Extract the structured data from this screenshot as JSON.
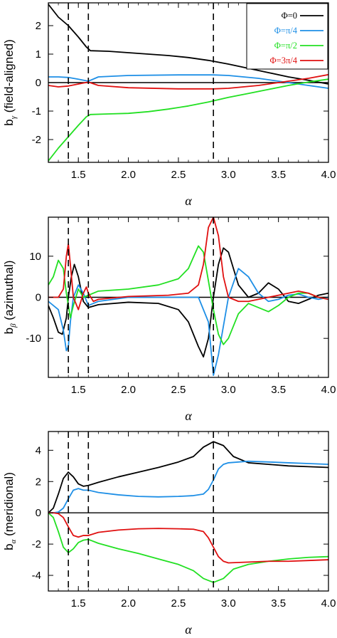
{
  "colors": {
    "phi0": "#000000",
    "phi1": "#1e8fe6",
    "phi2": "#22e022",
    "phi3": "#e01010",
    "axes": "#000000"
  },
  "legend": [
    {
      "label": "Φ=0",
      "color": "#000000"
    },
    {
      "label": "Φ=π/4",
      "color": "#1e8fe6"
    },
    {
      "label": "Φ=π/2",
      "color": "#22e022"
    },
    {
      "label": "Φ=3π/4",
      "color": "#e01010"
    }
  ],
  "chart_data": [
    {
      "type": "line",
      "ylabel_main": "b",
      "ylabel_sub": "γ",
      "ylabel_rest": " (field-aligned)",
      "xlabel": "α",
      "xlim": [
        1.2,
        4.0
      ],
      "ylim": [
        -2.8,
        2.8
      ],
      "xticks": [
        "1.5",
        "2.0",
        "2.5",
        "3.0",
        "3.5",
        "4.0"
      ],
      "xtick_values": [
        1.5,
        2.0,
        2.5,
        3.0,
        3.5,
        4.0
      ],
      "yticks": [
        "-2",
        "-1",
        "0",
        "1",
        "2"
      ],
      "ytick_values": [
        -2,
        -1,
        0,
        1,
        2
      ],
      "dashed_x": [
        1.4,
        1.6,
        2.85
      ],
      "zero_line": true,
      "legend": "top-right",
      "series": [
        {
          "name": "Φ=0",
          "color": "#000000",
          "x": [
            1.2,
            1.3,
            1.4,
            1.5,
            1.58,
            1.62,
            1.8,
            2.0,
            2.2,
            2.4,
            2.6,
            2.8,
            3.0,
            3.2,
            3.4,
            3.6,
            3.8,
            4.0
          ],
          "y": [
            2.75,
            2.3,
            2.0,
            1.6,
            1.25,
            1.12,
            1.1,
            1.05,
            1.0,
            0.95,
            0.88,
            0.78,
            0.65,
            0.5,
            0.35,
            0.2,
            0.08,
            -0.05
          ]
        },
        {
          "name": "Φ=π/4",
          "color": "#1e8fe6",
          "x": [
            1.2,
            1.3,
            1.4,
            1.5,
            1.6,
            1.7,
            2.0,
            2.5,
            2.85,
            3.0,
            3.3,
            3.6,
            3.8,
            4.0
          ],
          "y": [
            0.2,
            0.2,
            0.18,
            0.12,
            0.05,
            0.2,
            0.25,
            0.27,
            0.27,
            0.25,
            0.15,
            0.0,
            -0.1,
            -0.2
          ]
        },
        {
          "name": "Φ=π/2",
          "color": "#22e022",
          "x": [
            1.2,
            1.3,
            1.4,
            1.5,
            1.58,
            1.62,
            1.8,
            2.0,
            2.2,
            2.4,
            2.6,
            2.8,
            3.0,
            3.2,
            3.4,
            3.6,
            3.8,
            4.0
          ],
          "y": [
            -2.75,
            -2.3,
            -1.9,
            -1.5,
            -1.2,
            -1.12,
            -1.1,
            -1.08,
            -1.02,
            -0.93,
            -0.82,
            -0.68,
            -0.52,
            -0.38,
            -0.24,
            -0.1,
            0.02,
            0.12
          ]
        },
        {
          "name": "Φ=3π/4",
          "color": "#e01010",
          "x": [
            1.2,
            1.3,
            1.4,
            1.5,
            1.6,
            1.7,
            2.0,
            2.5,
            2.85,
            3.0,
            3.3,
            3.6,
            3.8,
            4.0
          ],
          "y": [
            -0.1,
            -0.15,
            -0.12,
            -0.05,
            0.02,
            -0.1,
            -0.18,
            -0.22,
            -0.22,
            -0.2,
            -0.1,
            0.05,
            0.15,
            0.28
          ]
        }
      ]
    },
    {
      "type": "line",
      "ylabel_main": "b",
      "ylabel_sub": "β",
      "ylabel_rest": " (azimuthal)",
      "xlabel": "α",
      "xlim": [
        1.2,
        4.0
      ],
      "ylim": [
        -19.5,
        19.5
      ],
      "xticks": [
        "1.5",
        "2.0",
        "2.5",
        "3.0",
        "3.5",
        "4.0"
      ],
      "xtick_values": [
        1.5,
        2.0,
        2.5,
        3.0,
        3.5,
        4.0
      ],
      "yticks": [
        "-10",
        "0",
        "10"
      ],
      "ytick_values": [
        -10,
        0,
        10
      ],
      "dashed_x": [
        1.4,
        1.6,
        2.85
      ],
      "zero_line": true,
      "series": [
        {
          "name": "Φ=0",
          "color": "#000000",
          "x": [
            1.2,
            1.25,
            1.3,
            1.34,
            1.38,
            1.4,
            1.43,
            1.46,
            1.5,
            1.55,
            1.6,
            1.7,
            2.0,
            2.3,
            2.5,
            2.6,
            2.7,
            2.75,
            2.8,
            2.85,
            2.9,
            2.95,
            3.0,
            3.1,
            3.2,
            3.3,
            3.4,
            3.5,
            3.6,
            3.7,
            3.8,
            3.9,
            4.0
          ],
          "y": [
            -2,
            -5,
            -8.5,
            -9,
            -5,
            0,
            5,
            8,
            5,
            -1,
            -2.5,
            -1.8,
            -1.2,
            -1.5,
            -3,
            -6,
            -12,
            -14.5,
            -10,
            0,
            8,
            12,
            11,
            3,
            0,
            1,
            3.5,
            2,
            -1,
            -1.5,
            -0.5,
            0.5,
            1
          ]
        },
        {
          "name": "Φ=π/4",
          "color": "#1e8fe6",
          "x": [
            1.2,
            1.3,
            1.35,
            1.38,
            1.4,
            1.42,
            1.45,
            1.5,
            1.55,
            1.6,
            1.7,
            2.0,
            2.5,
            2.7,
            2.8,
            2.85,
            2.9,
            3.0,
            3.1,
            3.2,
            3.3,
            3.4,
            3.5,
            3.6,
            3.7,
            3.8,
            3.9,
            4.0
          ],
          "y": [
            -1,
            -3,
            -8,
            -13,
            -12,
            -6,
            0,
            3,
            1,
            -2,
            -1,
            0,
            0,
            0,
            -6,
            -19,
            -14,
            0,
            7,
            5,
            1,
            -1,
            -0.5,
            0.5,
            0.8,
            0,
            -0.5,
            0
          ]
        },
        {
          "name": "Φ=π/2",
          "color": "#22e022",
          "x": [
            1.2,
            1.25,
            1.3,
            1.35,
            1.38,
            1.42,
            1.45,
            1.5,
            1.55,
            1.6,
            1.7,
            2.0,
            2.3,
            2.5,
            2.6,
            2.7,
            2.75,
            2.8,
            2.85,
            2.9,
            2.95,
            3.0,
            3.1,
            3.2,
            3.3,
            3.4,
            3.5,
            3.6,
            3.7,
            3.8,
            3.9,
            4.0
          ],
          "y": [
            3,
            5,
            9,
            7,
            1,
            -5,
            -2,
            2,
            0,
            0.5,
            1.5,
            2,
            3,
            4.5,
            7,
            12.5,
            11,
            4,
            -3,
            -9,
            -11.5,
            -10,
            -4,
            -1.5,
            -2.5,
            -3.5,
            -2,
            0,
            1,
            1,
            0,
            -0.5
          ]
        },
        {
          "name": "Φ=3π/4",
          "color": "#e01010",
          "x": [
            1.2,
            1.3,
            1.35,
            1.38,
            1.4,
            1.42,
            1.45,
            1.5,
            1.55,
            1.58,
            1.6,
            1.65,
            1.7,
            2.0,
            2.4,
            2.6,
            2.7,
            2.75,
            2.8,
            2.85,
            2.9,
            2.95,
            3.0,
            3.1,
            3.2,
            3.4,
            3.6,
            3.7,
            3.8,
            3.9,
            4.0
          ],
          "y": [
            0,
            0,
            2,
            10,
            13,
            8,
            0,
            -3,
            1,
            2.5,
            1,
            -1,
            -0.5,
            0.2,
            0.5,
            1,
            3,
            8,
            17,
            19.5,
            15,
            5,
            0,
            -1,
            -1,
            0,
            1,
            1.5,
            1,
            0,
            -0.5
          ]
        }
      ]
    },
    {
      "type": "line",
      "ylabel_main": "b",
      "ylabel_sub": "α",
      "ylabel_rest": " (meridional)",
      "xlabel": "α",
      "xlim": [
        1.2,
        4.0
      ],
      "ylim": [
        -5.0,
        5.2
      ],
      "xticks": [
        "1.5",
        "2.0",
        "2.5",
        "3.0",
        "3.5",
        "4.0"
      ],
      "xtick_values": [
        1.5,
        2.0,
        2.5,
        3.0,
        3.5,
        4.0
      ],
      "yticks": [
        "-4",
        "-2",
        "0",
        "2",
        "4"
      ],
      "ytick_values": [
        -4,
        -2,
        0,
        2,
        4
      ],
      "dashed_x": [
        1.4,
        1.6,
        2.85
      ],
      "zero_line": true,
      "series": [
        {
          "name": "Φ=0",
          "color": "#000000",
          "x": [
            1.2,
            1.25,
            1.3,
            1.35,
            1.4,
            1.45,
            1.5,
            1.55,
            1.6,
            1.7,
            1.9,
            2.1,
            2.3,
            2.5,
            2.65,
            2.75,
            2.85,
            2.95,
            3.05,
            3.2,
            3.4,
            3.6,
            3.8,
            4.0
          ],
          "y": [
            0,
            0.3,
            1.2,
            2.2,
            2.6,
            2.3,
            1.85,
            1.7,
            1.75,
            1.95,
            2.3,
            2.6,
            2.9,
            3.25,
            3.6,
            4.2,
            4.55,
            4.3,
            3.6,
            3.2,
            3.1,
            3.0,
            2.95,
            2.9
          ]
        },
        {
          "name": "Φ=π/4",
          "color": "#1e8fe6",
          "x": [
            1.2,
            1.25,
            1.3,
            1.35,
            1.4,
            1.45,
            1.5,
            1.55,
            1.6,
            1.7,
            1.9,
            2.1,
            2.3,
            2.5,
            2.65,
            2.75,
            2.8,
            2.85,
            2.9,
            2.95,
            3.0,
            3.2,
            3.4,
            3.6,
            3.8,
            4.0
          ],
          "y": [
            0,
            0,
            0.05,
            0.3,
            0.9,
            1.45,
            1.55,
            1.45,
            1.45,
            1.3,
            1.15,
            1.05,
            1.02,
            1.05,
            1.1,
            1.2,
            1.5,
            2.1,
            2.8,
            3.1,
            3.2,
            3.3,
            3.25,
            3.2,
            3.15,
            3.1
          ]
        },
        {
          "name": "Φ=π/2",
          "color": "#22e022",
          "x": [
            1.2,
            1.25,
            1.3,
            1.35,
            1.4,
            1.45,
            1.5,
            1.55,
            1.6,
            1.7,
            1.9,
            2.1,
            2.3,
            2.5,
            2.65,
            2.75,
            2.85,
            2.95,
            3.05,
            3.2,
            3.4,
            3.6,
            3.8,
            4.0
          ],
          "y": [
            0,
            -0.3,
            -1.2,
            -2.2,
            -2.55,
            -2.3,
            -1.9,
            -1.75,
            -1.7,
            -1.95,
            -2.3,
            -2.6,
            -2.95,
            -3.3,
            -3.7,
            -4.2,
            -4.45,
            -4.2,
            -3.6,
            -3.3,
            -3.1,
            -2.95,
            -2.85,
            -2.8
          ]
        },
        {
          "name": "Φ=3π/4",
          "color": "#e01010",
          "x": [
            1.2,
            1.25,
            1.3,
            1.35,
            1.4,
            1.45,
            1.5,
            1.55,
            1.6,
            1.7,
            1.9,
            2.1,
            2.3,
            2.5,
            2.65,
            2.75,
            2.8,
            2.85,
            2.9,
            2.95,
            3.0,
            3.2,
            3.4,
            3.6,
            3.8,
            4.0
          ],
          "y": [
            0,
            0,
            -0.05,
            -0.3,
            -0.9,
            -1.45,
            -1.55,
            -1.45,
            -1.45,
            -1.25,
            -1.1,
            -1.02,
            -1.0,
            -1.02,
            -1.05,
            -1.2,
            -1.6,
            -2.2,
            -2.8,
            -3.1,
            -3.2,
            -3.15,
            -3.1,
            -3.1,
            -3.05,
            -3.0
          ]
        }
      ]
    }
  ]
}
